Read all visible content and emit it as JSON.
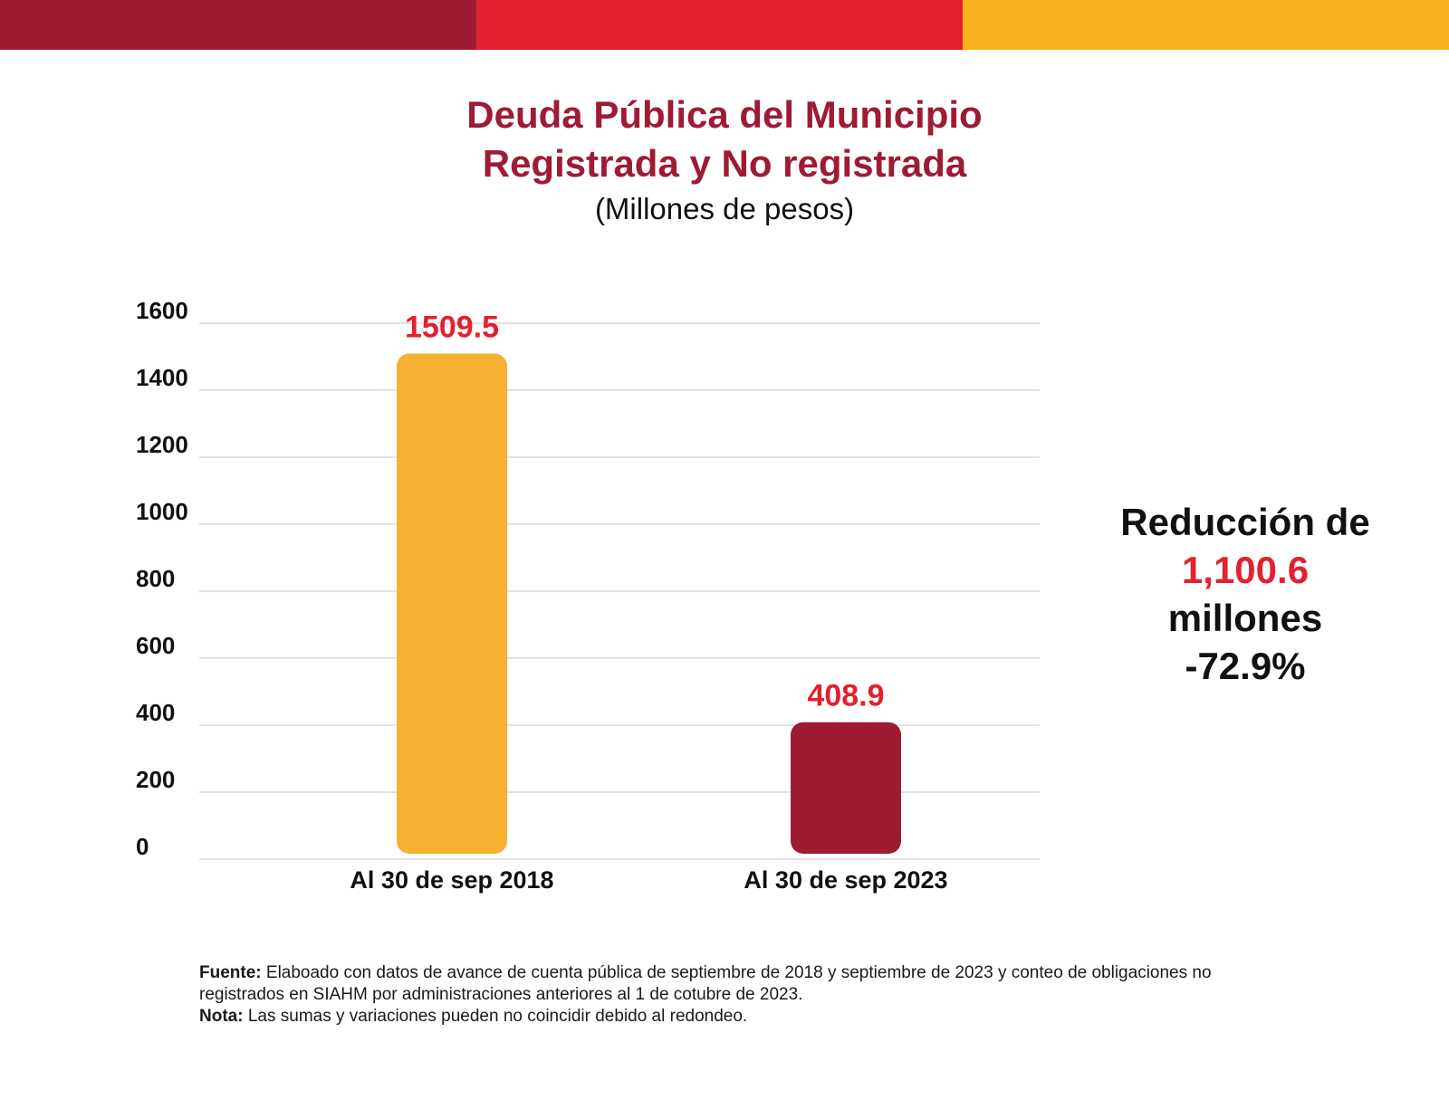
{
  "header_bar": {
    "colors": [
      "#9e1b34",
      "#e3202f",
      "#f6b31f"
    ]
  },
  "title": {
    "line1": "Deuda Pública del Municipio",
    "line2": "Registrada y No registrada",
    "subtitle": "(Millones de pesos)"
  },
  "chart_data": {
    "type": "bar",
    "categories": [
      "Al 30 de sep 2018",
      "Al 30 de sep 2023"
    ],
    "values": [
      1509.5,
      408.9
    ],
    "value_labels": [
      "1509.5",
      "408.9"
    ],
    "bar_colors": [
      "#f6b133",
      "#9e1b34"
    ],
    "value_label_color": "#e3202f",
    "ylim": [
      0,
      1600
    ],
    "yticks": [
      0,
      200,
      400,
      600,
      800,
      1000,
      1200,
      1400,
      1600
    ],
    "grid": true,
    "title": "Deuda Pública del Municipio Registrada y No registrada",
    "xlabel": "",
    "ylabel": ""
  },
  "summary": {
    "line1": "Reducción de",
    "amount": "1,100.6",
    "line3": "millones",
    "percent": "-72.9%"
  },
  "footnotes": {
    "source_label": "Fuente:",
    "source_text": "Elaboado con datos de avance de cuenta pública de septiembre de 2018 y septiembre de 2023 y conteo de obligaciones no registrados en SIAHM por administraciones anteriores al 1 de cotubre de 2023.",
    "note_label": "Nota:",
    "note_text": "Las sumas y variaciones pueden no coincidir debido al redondeo."
  }
}
